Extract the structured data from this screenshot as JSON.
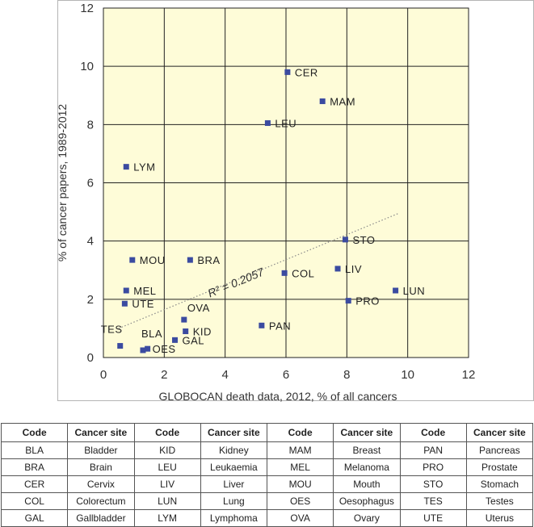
{
  "chart_data": {
    "type": "scatter",
    "title": "",
    "xlabel": "GLOBOCAN death data, 2012, % of all cancers",
    "ylabel": "% of cancer papers, 1989-2012",
    "xlim": [
      0,
      12
    ],
    "ylim": [
      0,
      12
    ],
    "xticks": [
      "0",
      "2",
      "4",
      "6",
      "8",
      "10",
      "12"
    ],
    "yticks": [
      "0",
      "2",
      "4",
      "6",
      "8",
      "10",
      "12"
    ],
    "grid": true,
    "plot_background": "#fefcd8",
    "marker_color": "#3b4ba0",
    "points": [
      {
        "label": "CER",
        "x": 6.05,
        "y": 9.8
      },
      {
        "label": "MAM",
        "x": 7.2,
        "y": 8.8
      },
      {
        "label": "LEU",
        "x": 5.4,
        "y": 8.05
      },
      {
        "label": "LYM",
        "x": 0.75,
        "y": 6.55
      },
      {
        "label": "STO",
        "x": 7.95,
        "y": 4.05
      },
      {
        "label": "MOU",
        "x": 0.95,
        "y": 3.35
      },
      {
        "label": "BRA",
        "x": 2.85,
        "y": 3.35
      },
      {
        "label": "LIV",
        "x": 7.7,
        "y": 3.05
      },
      {
        "label": "COL",
        "x": 5.95,
        "y": 2.9
      },
      {
        "label": "LUN",
        "x": 9.6,
        "y": 2.3
      },
      {
        "label": "MEL",
        "x": 0.75,
        "y": 2.3
      },
      {
        "label": "PRO",
        "x": 8.05,
        "y": 1.95
      },
      {
        "label": "UTE",
        "x": 0.7,
        "y": 1.85
      },
      {
        "label": "OVA",
        "x": 2.65,
        "y": 1.3
      },
      {
        "label": "PAN",
        "x": 5.2,
        "y": 1.1
      },
      {
        "label": "KID",
        "x": 2.7,
        "y": 0.9
      },
      {
        "label": "GAL",
        "x": 2.35,
        "y": 0.6
      },
      {
        "label": "TES",
        "x": 0.55,
        "y": 0.4
      },
      {
        "label": "BLA",
        "x": 1.3,
        "y": 0.25
      },
      {
        "label": "OES",
        "x": 1.45,
        "y": 0.3
      }
    ],
    "trendline": {
      "style": "dotted",
      "from": {
        "x": 0.5,
        "y": 1.0
      },
      "to": {
        "x": 9.7,
        "y": 4.95
      }
    },
    "annotation": "R² = 0.2057"
  },
  "legend_table": {
    "headers": [
      "Code",
      "Cancer site",
      "Code",
      "Cancer site",
      "Code",
      "Cancer site",
      "Code",
      "Cancer site"
    ],
    "rows": [
      [
        "BLA",
        "Bladder",
        "KID",
        "Kidney",
        "MAM",
        "Breast",
        "PAN",
        "Pancreas"
      ],
      [
        "BRA",
        "Brain",
        "LEU",
        "Leukaemia",
        "MEL",
        "Melanoma",
        "PRO",
        "Prostate"
      ],
      [
        "CER",
        "Cervix",
        "LIV",
        "Liver",
        "MOU",
        "Mouth",
        "STO",
        "Stomach"
      ],
      [
        "COL",
        "Colorectum",
        "LUN",
        "Lung",
        "OES",
        "Oesophagus",
        "TES",
        "Testes"
      ],
      [
        "GAL",
        "Gallbladder",
        "LYM",
        "Lymphoma",
        "OVA",
        "Ovary",
        "UTE",
        "Uterus"
      ]
    ]
  }
}
